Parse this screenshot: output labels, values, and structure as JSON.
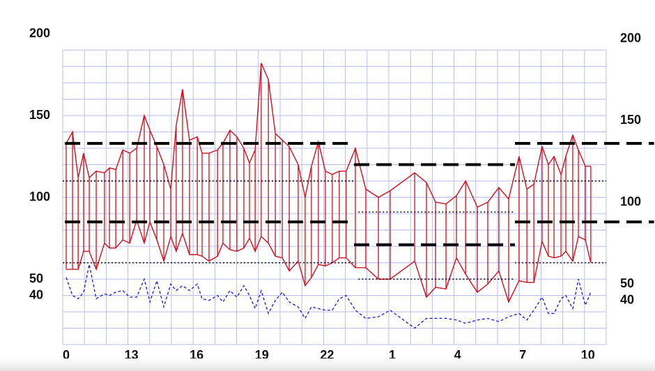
{
  "chart_data": {
    "type": "bp",
    "x": [
      10.16,
      10.45,
      10.71,
      10.96,
      11.22,
      11.54,
      11.92,
      12.15,
      12.44,
      12.76,
      13.08,
      13.4,
      13.75,
      14.01,
      14.33,
      14.65,
      14.97,
      15.22,
      15.51,
      15.83,
      16.19,
      16.41,
      16.73,
      17.12,
      17.37,
      17.69,
      18.01,
      18.33,
      18.59,
      18.85,
      19.13,
      19.46,
      19.78,
      20.1,
      20.42,
      20.83,
      21.15,
      21.44,
      21.76,
      22.08,
      22.4,
      22.72,
      23.04,
      23.46,
      23.94,
      24.52,
      25.06,
      26.19,
      26.73,
      27.15,
      27.63,
      28.11,
      28.53,
      29.07,
      29.55,
      30.06,
      30.51,
      30.99,
      31.35,
      31.67,
      32.05,
      32.34,
      32.6,
      32.92,
      33.14,
      33.46,
      33.72,
      34.04,
      34.29
    ],
    "series": [
      {
        "color": "#cc1122",
        "values": [
          133,
          140,
          112,
          127,
          112,
          116,
          115,
          118,
          117,
          129,
          127,
          130,
          150,
          141,
          131,
          120,
          105,
          144,
          166,
          135,
          137,
          127,
          127,
          129,
          133,
          141,
          137,
          130,
          121,
          129,
          182,
          172,
          139,
          135,
          131,
          120,
          100,
          119,
          134,
          116,
          114,
          116,
          116,
          130,
          105,
          100,
          104,
          115,
          109,
          97,
          96,
          101,
          110,
          94,
          97,
          106,
          99,
          125,
          105,
          108,
          131,
          120,
          125,
          114,
          125,
          138,
          129,
          119,
          119
        ]
      },
      {
        "color": "#cc1122",
        "values": [
          56,
          56,
          56,
          67,
          67,
          56,
          72,
          69,
          69,
          74,
          72,
          86,
          72,
          85,
          74,
          61,
          76,
          67,
          78,
          65,
          65,
          64,
          61,
          64,
          72,
          68,
          67,
          69,
          75,
          67,
          76,
          72,
          64,
          63,
          55,
          61,
          46,
          51,
          59,
          58,
          60,
          63,
          63,
          57,
          57,
          50,
          50,
          61,
          39,
          45,
          44,
          63,
          53,
          42,
          47,
          55,
          36,
          49,
          48,
          48,
          73,
          64,
          63,
          64,
          67,
          61,
          76,
          74,
          60
        ]
      },
      {
        "color": "#1a1acc",
        "values": [
          51,
          40,
          38,
          42,
          59,
          38,
          41,
          40,
          42,
          43,
          39,
          39,
          50,
          36,
          49,
          33,
          47,
          43,
          46,
          43,
          47,
          38,
          37,
          40,
          36,
          43,
          39,
          46,
          40,
          32,
          43,
          29,
          37,
          42,
          36,
          33,
          26,
          33,
          32,
          31,
          31,
          38,
          40,
          31,
          26,
          27,
          31,
          20,
          26,
          26,
          26,
          25,
          23,
          25,
          26,
          24,
          27,
          29,
          25,
          31,
          39,
          29,
          29,
          38,
          40,
          32,
          50,
          34,
          42
        ]
      }
    ],
    "reference_lines": [
      {
        "y": 133,
        "x0": 10.1,
        "x1": 23.4,
        "style": "dashed"
      },
      {
        "y": 85,
        "x0": 10.1,
        "x1": 23.4,
        "style": "dashed"
      },
      {
        "y": 110,
        "x0": 10,
        "x1": 23.4,
        "style": "dotted"
      },
      {
        "y": 60,
        "x0": 10,
        "x1": 23.4,
        "style": "dotted"
      },
      {
        "y": 120,
        "x0": 23.4,
        "x1": 30.8,
        "style": "dashed"
      },
      {
        "y": 71,
        "x0": 23.4,
        "x1": 30.8,
        "style": "dashed"
      },
      {
        "y": 91,
        "x0": 23.6,
        "x1": 30.8,
        "style": "dotted"
      },
      {
        "y": 50,
        "x0": 23.6,
        "x1": 30.8,
        "style": "dotted"
      },
      {
        "y": 133,
        "x0": 30.8,
        "x1": 37.2,
        "style": "dashed"
      },
      {
        "y": 85,
        "x0": 30.8,
        "x1": 37.2,
        "style": "dashed"
      },
      {
        "y": 110,
        "x0": 30.8,
        "x1": 35,
        "style": "dotted"
      },
      {
        "y": 60,
        "x0": 30.8,
        "x1": 35,
        "style": "dotted"
      }
    ],
    "xlim": [
      10,
      35
    ],
    "ylim": [
      10,
      190
    ],
    "xticks": [
      {
        "value": 10,
        "label": "0"
      },
      13,
      16,
      19,
      22,
      {
        "value": 25,
        "label": "1"
      },
      {
        "value": 28,
        "label": "4"
      },
      {
        "value": 31,
        "label": "7"
      },
      {
        "value": 34,
        "label": "10"
      }
    ],
    "yticks": [
      200,
      150,
      100,
      50,
      40
    ],
    "grid": true,
    "ygrid_step": 10,
    "xgrid_step": 1
  }
}
